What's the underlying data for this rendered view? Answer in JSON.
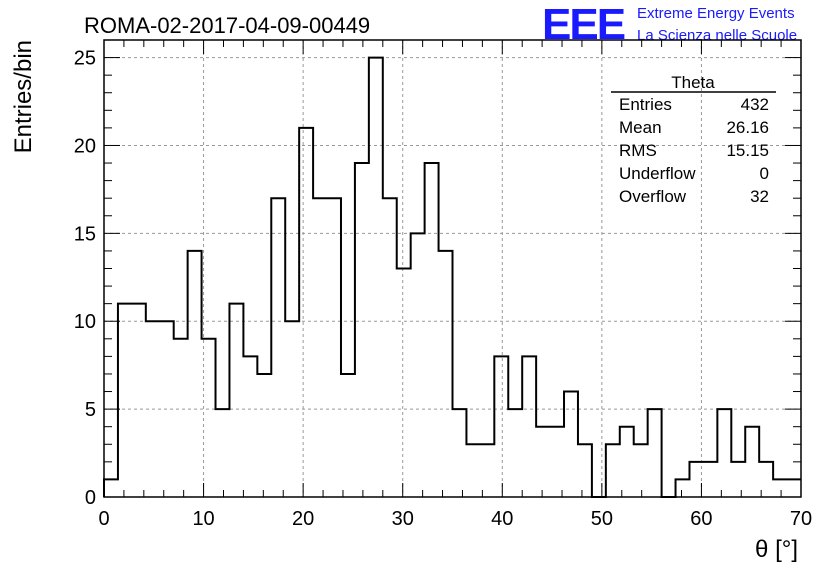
{
  "chart_data": {
    "type": "bar",
    "title": "ROMA-02-2017-04-09-00449",
    "xlabel": "θ [°]",
    "ylabel": "Entries/bin",
    "xlim": [
      0,
      70
    ],
    "ylim": [
      0,
      26
    ],
    "x_ticks": [
      0,
      10,
      20,
      30,
      40,
      50,
      60,
      70
    ],
    "y_ticks": [
      0,
      5,
      10,
      15,
      20,
      25
    ],
    "grid": true,
    "bin_width": 1.4,
    "values": [
      1,
      11,
      11,
      10,
      10,
      9,
      14,
      9,
      5,
      11,
      8,
      7,
      17,
      10,
      21,
      17,
      17,
      7,
      19,
      25,
      17,
      13,
      15,
      19,
      14,
      5,
      3,
      3,
      8,
      5,
      8,
      4,
      4,
      6,
      3,
      0,
      3,
      4,
      3,
      5,
      0,
      1,
      2,
      2,
      5,
      2,
      4,
      2,
      1,
      1
    ]
  },
  "stats": {
    "title": "Theta",
    "rows": [
      {
        "label": "Entries",
        "value": "432"
      },
      {
        "label": "Mean",
        "value": "26.16"
      },
      {
        "label": "RMS",
        "value": "15.15"
      },
      {
        "label": "Underflow",
        "value": "0"
      },
      {
        "label": "Overflow",
        "value": "32"
      }
    ]
  },
  "logo": {
    "letters": "EEE",
    "line1": "Extreme Energy Events",
    "line2": "La Scienza nelle Scuole",
    "color": "#1a1aff"
  }
}
